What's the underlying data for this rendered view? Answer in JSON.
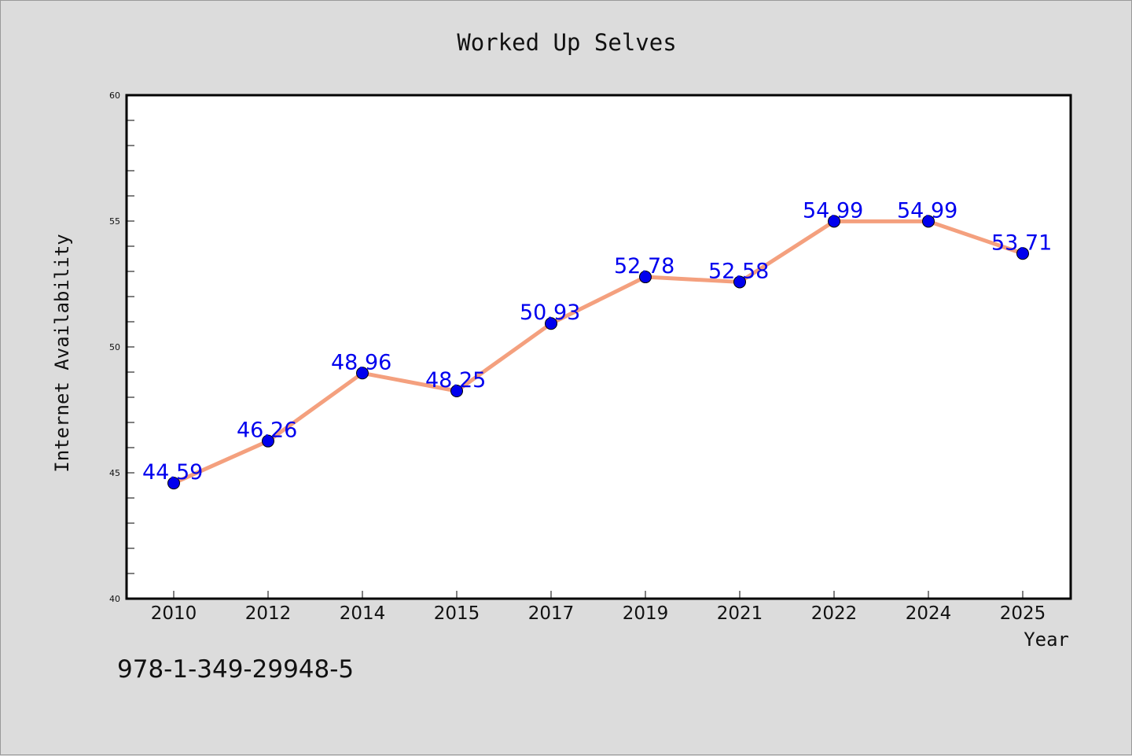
{
  "chart_data": {
    "type": "line",
    "title": "Worked Up Selves",
    "xlabel": "Year",
    "ylabel": "Internet Availability",
    "categories": [
      "2010",
      "2012",
      "2014",
      "2015",
      "2017",
      "2019",
      "2021",
      "2022",
      "2024",
      "2025"
    ],
    "series": [
      {
        "values": [
          44.59,
          46.26,
          48.96,
          48.25,
          50.93,
          52.78,
          52.58,
          54.99,
          54.99,
          53.71
        ],
        "data_labels": [
          "44.59",
          "46.26",
          "48.96",
          "48.25",
          "50.93",
          "52.78",
          "52.58",
          "54.99",
          "54.99",
          "53.71"
        ],
        "line_color": "#f4a07e",
        "marker_color": "#0000ee"
      }
    ],
    "ylim": [
      40,
      60
    ],
    "y_ticks": [
      "40",
      "45",
      "50",
      "55",
      "60"
    ],
    "grid": false,
    "legend": "none"
  },
  "footer": {
    "isbn": "978-1-349-29948-5"
  },
  "colors": {
    "background": "#dcdcdc",
    "plot_background": "#ffffff",
    "data_label": "#0000ee"
  }
}
